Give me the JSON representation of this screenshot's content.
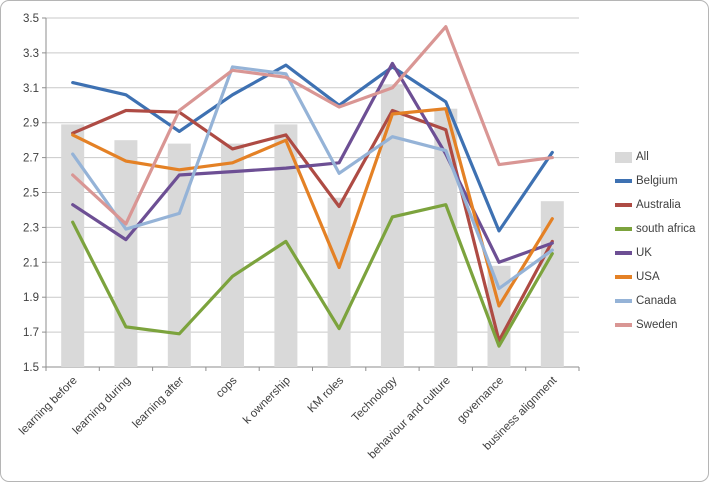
{
  "chart_data": {
    "type": "combo",
    "title": "",
    "xlabel": "",
    "ylabel": "",
    "categories": [
      "learning before",
      "learning during",
      "learning after",
      "cops",
      "k ownership",
      "KM roles",
      "Technology",
      "behaviour and culture",
      "governance",
      "business alignment"
    ],
    "series": [
      {
        "name": "All",
        "kind": "bar",
        "color": "#D9D9D9",
        "values": [
          2.89,
          2.8,
          2.78,
          2.78,
          2.89,
          2.47,
          3.12,
          2.98,
          2.08,
          2.45
        ]
      },
      {
        "name": "Belgium",
        "kind": "line",
        "color": "#3E71B2",
        "values": [
          3.13,
          3.06,
          2.85,
          3.06,
          3.23,
          3.0,
          3.22,
          3.02,
          2.28,
          2.73
        ]
      },
      {
        "name": "Australia",
        "kind": "line",
        "color": "#AE4B44",
        "values": [
          2.84,
          2.97,
          2.96,
          2.75,
          2.83,
          2.42,
          2.97,
          2.86,
          1.65,
          2.22
        ]
      },
      {
        "name": "south africa",
        "kind": "line",
        "color": "#7CA33D",
        "values": [
          2.33,
          1.73,
          1.69,
          2.02,
          2.22,
          1.72,
          2.36,
          2.43,
          1.62,
          2.15
        ]
      },
      {
        "name": "UK",
        "kind": "line",
        "color": "#6D4F94",
        "values": [
          2.43,
          2.23,
          2.6,
          2.62,
          2.64,
          2.67,
          3.24,
          2.72,
          2.1,
          2.21
        ]
      },
      {
        "name": "USA",
        "kind": "line",
        "color": "#E48125",
        "values": [
          2.83,
          2.68,
          2.63,
          2.67,
          2.8,
          2.07,
          2.95,
          2.98,
          1.85,
          2.35
        ]
      },
      {
        "name": "Canada",
        "kind": "line",
        "color": "#95B3D7",
        "values": [
          2.72,
          2.29,
          2.38,
          3.22,
          3.18,
          2.61,
          2.82,
          2.74,
          1.95,
          2.17
        ]
      },
      {
        "name": "Sweden",
        "kind": "line",
        "color": "#D99694",
        "values": [
          2.6,
          2.32,
          2.97,
          3.2,
          3.16,
          2.99,
          3.1,
          3.45,
          2.66,
          2.7
        ]
      }
    ],
    "ylim": [
      1.5,
      3.5
    ],
    "ytick_step": 0.2,
    "ytick_labels": [
      "1.5",
      "1.7",
      "1.9",
      "2.1",
      "2.3",
      "2.5",
      "2.7",
      "2.9",
      "3.1",
      "3.3",
      "3.5"
    ],
    "grid": true,
    "legend_position": "right",
    "x_label_rotation": -45,
    "colors": {
      "gridline": "#C9C9C9",
      "axis": "#8E8E8E",
      "tick_text": "#3F3F3F",
      "background": "#FFFFFF"
    }
  }
}
